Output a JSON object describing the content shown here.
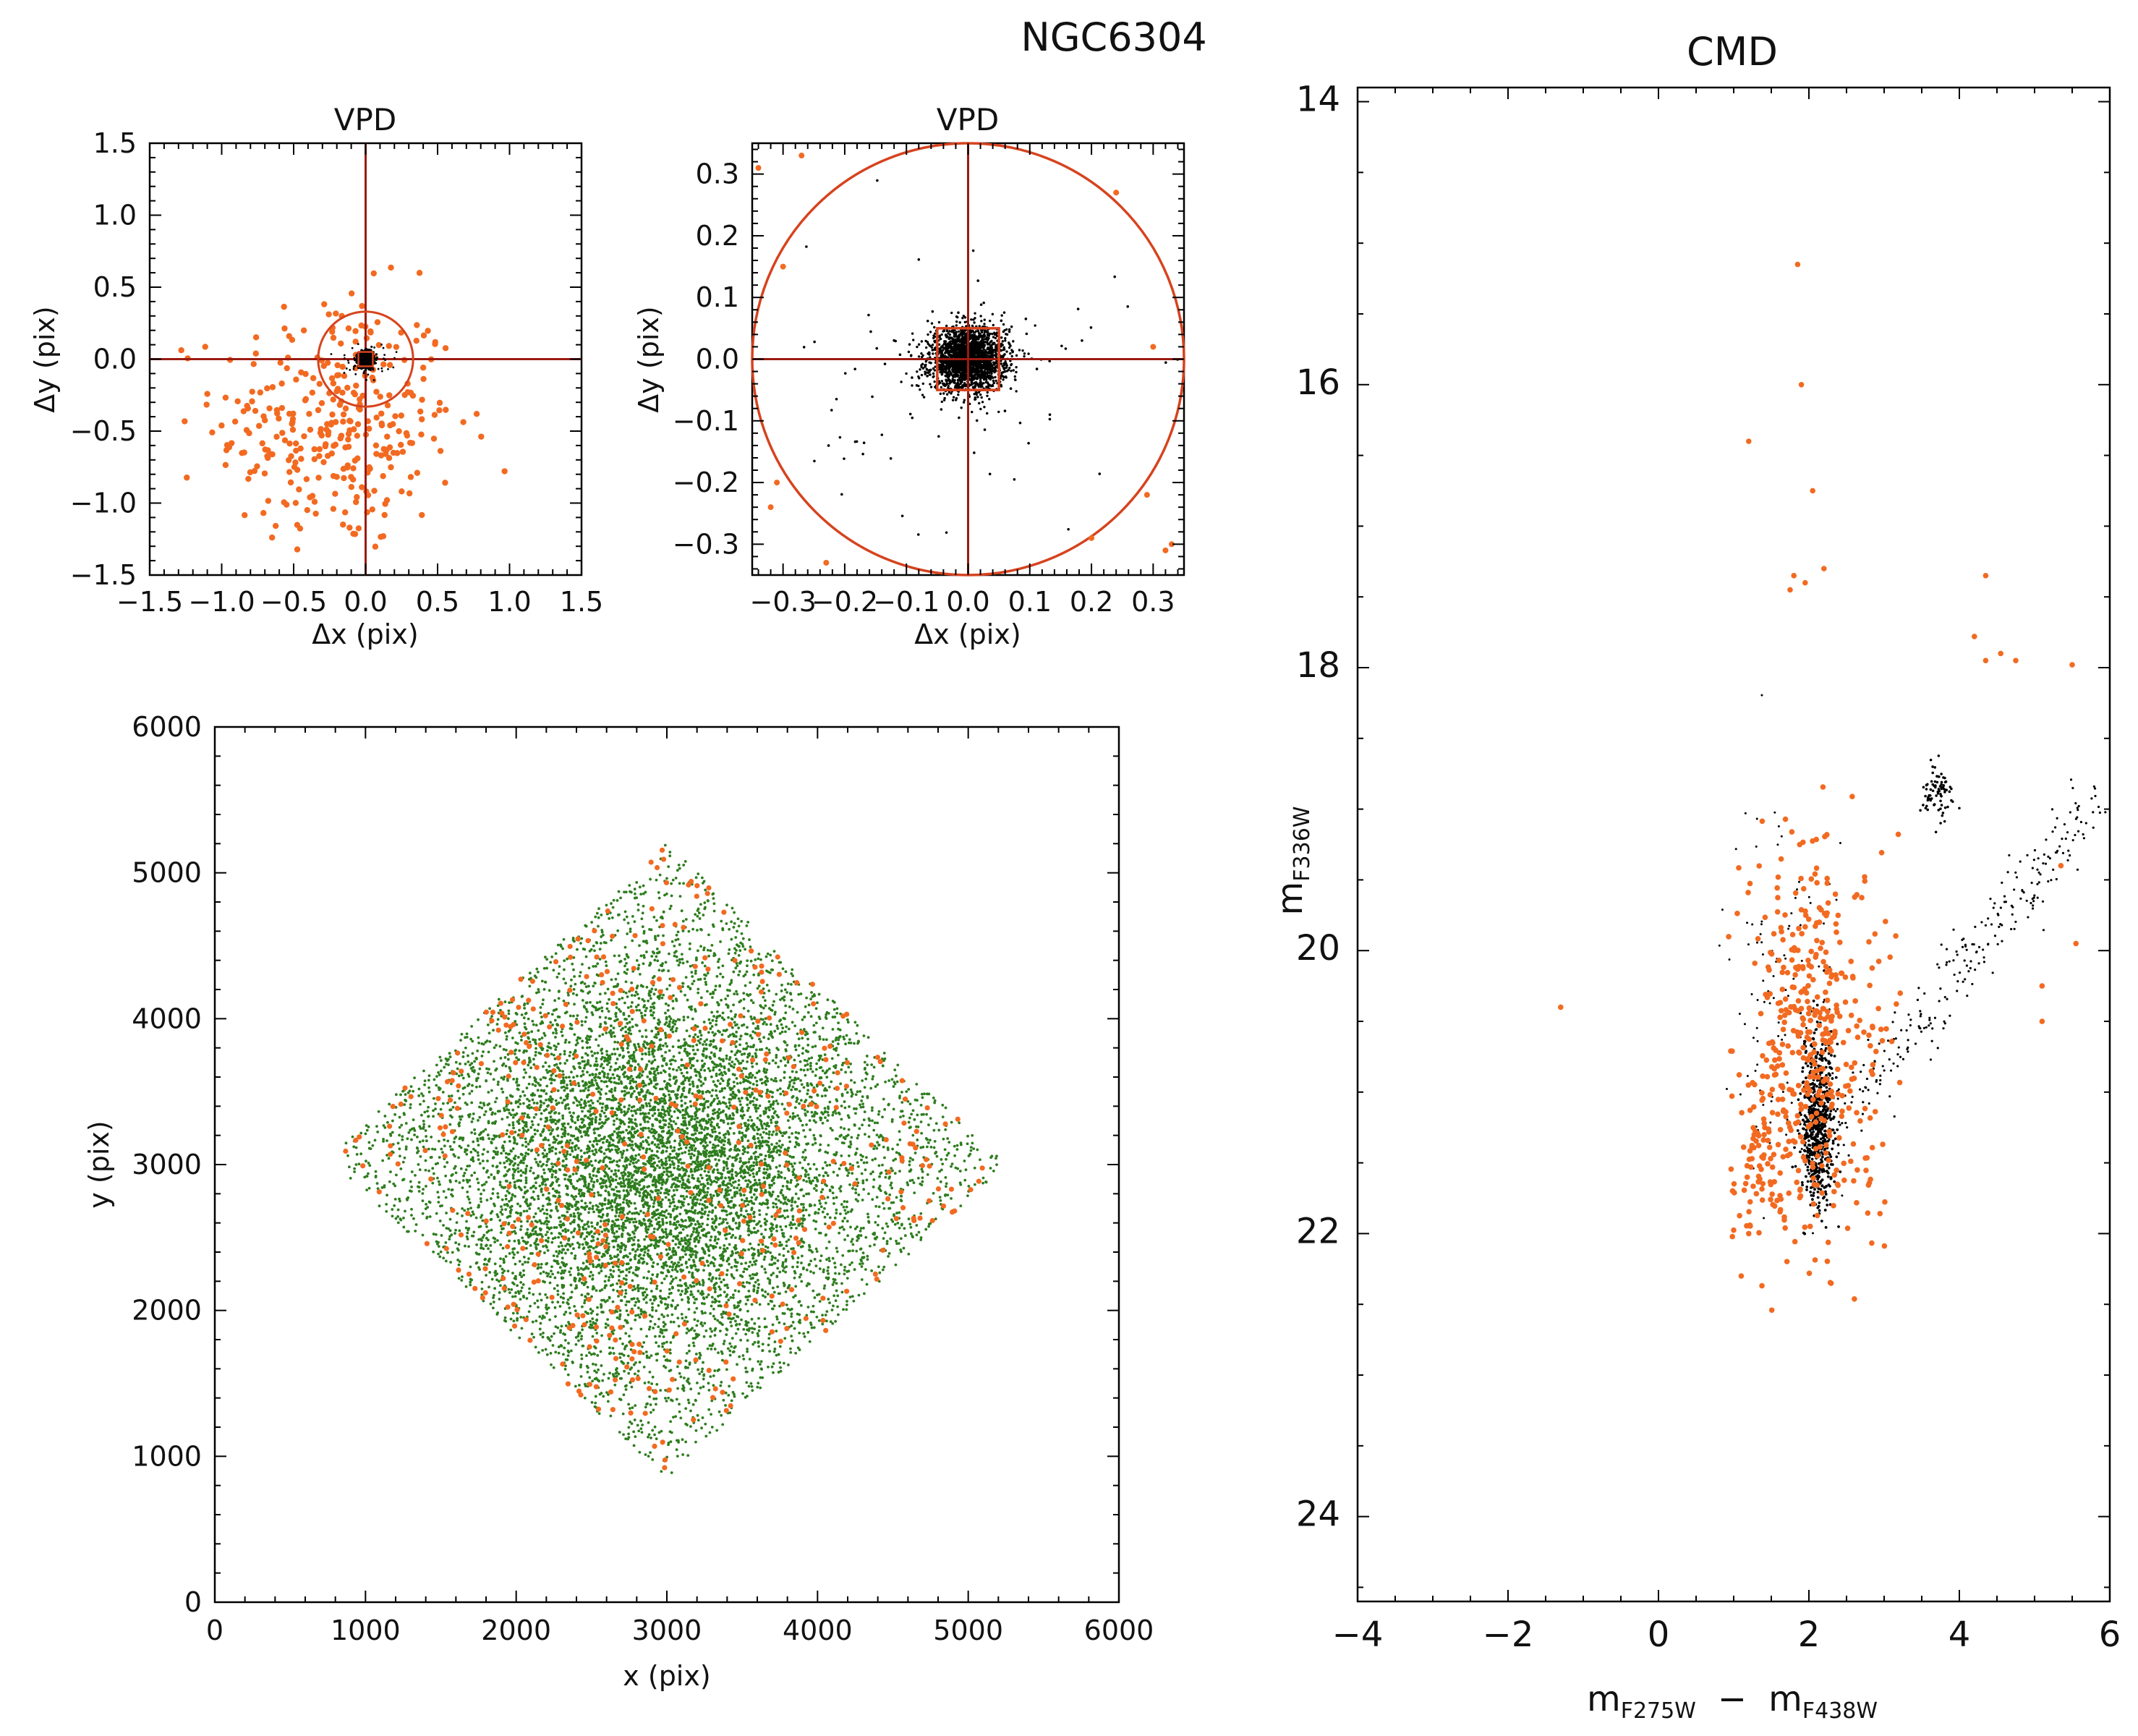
{
  "figure_title": "NGC6304",
  "colors": {
    "orange": "#F26A21",
    "black": "#000000",
    "green": "#2E7D1E",
    "line": "#9B1B10",
    "circle": "#D6431E"
  },
  "labels": {
    "vpd1_title": "VPD",
    "vpd1_xlabel": "Δx (pix)",
    "vpd1_ylabel": "Δy (pix)",
    "vpd2_title": "VPD",
    "vpd2_xlabel": "Δx (pix)",
    "vpd2_ylabel": "Δy (pix)",
    "map_xlabel": "x (pix)",
    "map_ylabel": "y (pix)",
    "cmd_title": "CMD",
    "cmd_ylabel_main": "m",
    "cmd_ylabel_sub": "F336W",
    "cmd_xlabel_m1": "m",
    "cmd_xlabel_sub1": "F275W",
    "cmd_xlabel_minus": "−",
    "cmd_xlabel_m2": "m",
    "cmd_xlabel_sub2": "F438W"
  },
  "chart_data": [
    {
      "type": "scatter",
      "title": "VPD",
      "xlabel": "Δx (pix)",
      "ylabel": "Δy (pix)",
      "xlim": [
        -1.5,
        1.5
      ],
      "ylim": [
        -1.5,
        1.5
      ],
      "xticks": [
        "−1.5",
        "−1.0",
        "−0.5",
        "0.0",
        "0.5",
        "1.0",
        "1.5"
      ],
      "yticks": [
        "−1.5",
        "−1.0",
        "−0.5",
        "0.0",
        "0.5",
        "1.0",
        "1.5"
      ],
      "selection_circle_radius": 0.33,
      "series": [
        {
          "color": "orange",
          "n": 330,
          "center": [
            -0.2,
            -0.45
          ],
          "spread": [
            0.42,
            0.45
          ]
        },
        {
          "color": "black",
          "n": 1500,
          "center": [
            0.0,
            0.0
          ],
          "spread": [
            0.025,
            0.025
          ]
        }
      ]
    },
    {
      "type": "scatter",
      "title": "VPD",
      "xlabel": "Δx (pix)",
      "ylabel": "Δy (pix)",
      "xlim": [
        -0.35,
        0.35
      ],
      "ylim": [
        -0.35,
        0.35
      ],
      "xticks": [
        "−0.3",
        "−0.2",
        "−0.1",
        "0.0",
        "0.1",
        "0.2",
        "0.3"
      ],
      "yticks": [
        "−0.3",
        "−0.2",
        "−0.1",
        "0.0",
        "0.1",
        "0.2",
        "0.3"
      ],
      "selection_circle_radius": 0.35,
      "selection_box_halfwidth": 0.05,
      "series": [
        {
          "color": "black",
          "n": 2200,
          "center": [
            0.0,
            0.0
          ],
          "spread": [
            0.03,
            0.025
          ]
        },
        {
          "color": "orange",
          "n": 12,
          "center": [
            0.0,
            0.0
          ],
          "spread": [
            0.3,
            0.3
          ]
        }
      ]
    },
    {
      "type": "scatter",
      "xlabel": "x (pix)",
      "ylabel": "y (pix)",
      "xlim": [
        0,
        6000
      ],
      "ylim": [
        0,
        6000
      ],
      "xticks": [
        "0",
        "1000",
        "2000",
        "3000",
        "4000",
        "5000",
        "6000"
      ],
      "yticks": [
        "0",
        "1000",
        "2000",
        "3000",
        "4000",
        "5000",
        "6000"
      ],
      "field_corners": [
        [
          3000,
          5200
        ],
        [
          5250,
          3000
        ],
        [
          3000,
          850
        ],
        [
          750,
          3050
        ]
      ],
      "cluster_center": [
        2950,
        3000
      ],
      "series": [
        {
          "color": "green",
          "n": 9000
        },
        {
          "color": "orange",
          "n": 450
        }
      ]
    },
    {
      "type": "scatter",
      "title": "CMD",
      "xlabel": "mF275W − mF438W",
      "ylabel": "mF336W",
      "xlim": [
        -4,
        6
      ],
      "ylim": [
        24.6,
        13.9
      ],
      "xticks": [
        "−4",
        "−2",
        "0",
        "2",
        "4",
        "6"
      ],
      "yticks": [
        "14",
        "16",
        "18",
        "20",
        "22",
        "24"
      ],
      "series": [
        {
          "color": "black",
          "n": 1200,
          "components": [
            "main-sequence turnoff ~ (2.1, 21.2)",
            "red giant branch to (5.8, 19.1)",
            "red clump ~ (3.7, 18.9)"
          ]
        },
        {
          "color": "orange",
          "n": 560,
          "components": [
            "field stars spread 1.0–4.0 in colour, 18–22 mag",
            "bright field stars up to 15.2 mag"
          ]
        }
      ]
    }
  ]
}
